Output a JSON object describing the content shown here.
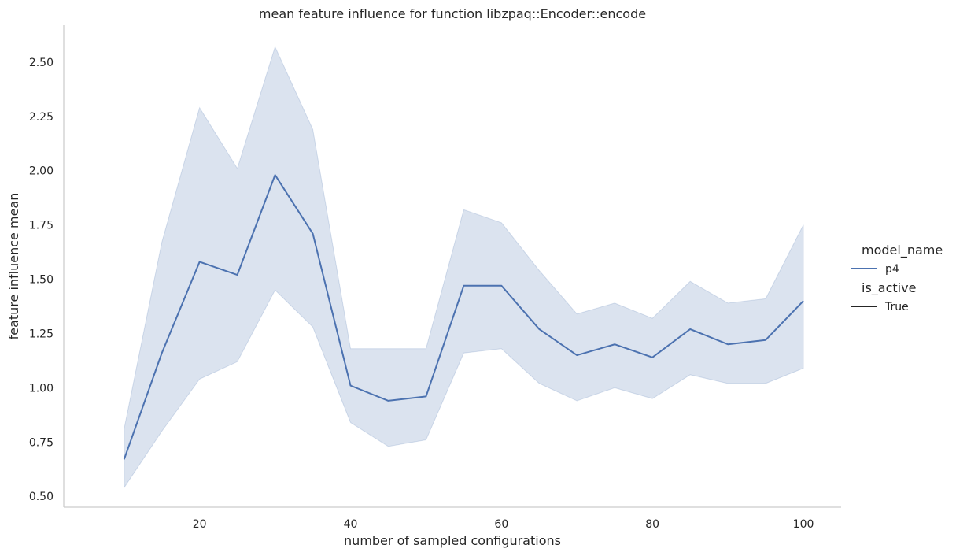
{
  "chart_data": {
    "type": "line",
    "title": "mean feature influence for function libzpaq::Encoder::encode",
    "xlabel": "number of sampled configurations",
    "ylabel": "feature influence mean",
    "xlim": [
      2,
      105
    ],
    "ylim": [
      0.45,
      2.67
    ],
    "xticks": [
      20,
      40,
      60,
      80,
      100
    ],
    "yticks": [
      0.5,
      0.75,
      1.0,
      1.25,
      1.5,
      1.75,
      2.0,
      2.25,
      2.5
    ],
    "xtick_labels": [
      "20",
      "40",
      "60",
      "80",
      "100"
    ],
    "ytick_labels": [
      "0.50",
      "0.75",
      "1.00",
      "1.25",
      "1.50",
      "1.75",
      "2.00",
      "2.25",
      "2.50"
    ],
    "grid": false,
    "legend": {
      "placement": "right",
      "hue_title": "model_name",
      "hue_entries": [
        {
          "label": "p4",
          "color": "#4c72b0"
        }
      ],
      "style_title": "is_active",
      "style_entries": [
        {
          "label": "True",
          "color": "#262626"
        }
      ]
    },
    "series": [
      {
        "name": "p4",
        "color": "#4c72b0",
        "x": [
          10,
          15,
          20,
          25,
          30,
          35,
          40,
          45,
          50,
          55,
          60,
          65,
          70,
          75,
          80,
          85,
          90,
          95,
          100
        ],
        "y": [
          0.67,
          1.16,
          1.58,
          1.52,
          1.98,
          1.71,
          1.01,
          0.94,
          0.96,
          1.47,
          1.47,
          1.27,
          1.15,
          1.2,
          1.14,
          1.27,
          1.2,
          1.22,
          1.4
        ],
        "ci_lower": [
          0.54,
          0.8,
          1.04,
          1.12,
          1.45,
          1.28,
          0.84,
          0.73,
          0.76,
          1.16,
          1.18,
          1.02,
          0.94,
          1.0,
          0.95,
          1.06,
          1.02,
          1.02,
          1.09
        ],
        "ci_upper": [
          0.81,
          1.67,
          2.29,
          2.01,
          2.57,
          2.19,
          1.18,
          1.18,
          1.18,
          1.82,
          1.76,
          1.54,
          1.34,
          1.39,
          1.32,
          1.49,
          1.39,
          1.41,
          1.75
        ]
      }
    ]
  }
}
